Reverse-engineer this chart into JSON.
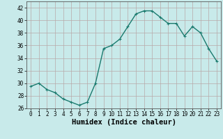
{
  "x": [
    0,
    1,
    2,
    3,
    4,
    5,
    6,
    7,
    8,
    9,
    10,
    11,
    12,
    13,
    14,
    15,
    16,
    17,
    18,
    19,
    20,
    21,
    22,
    23
  ],
  "y": [
    29.5,
    30,
    29,
    28.5,
    27.5,
    27,
    26.5,
    27,
    30,
    35.5,
    36,
    37,
    39,
    41,
    41.5,
    41.5,
    40.5,
    39.5,
    39.5,
    37.5,
    39,
    38,
    35.5,
    33.5
  ],
  "line_color": "#1a7a6e",
  "marker": "+",
  "marker_size": 3,
  "background_color": "#c8eaea",
  "grid_color": "#b8a8a8",
  "xlabel": "Humidex (Indice chaleur)",
  "ylim": [
    26,
    43
  ],
  "xlim": [
    -0.5,
    23.5
  ],
  "yticks": [
    26,
    28,
    30,
    32,
    34,
    36,
    38,
    40,
    42
  ],
  "xticks": [
    0,
    1,
    2,
    3,
    4,
    5,
    6,
    7,
    8,
    9,
    10,
    11,
    12,
    13,
    14,
    15,
    16,
    17,
    18,
    19,
    20,
    21,
    22,
    23
  ],
  "tick_fontsize": 5.5,
  "xlabel_fontsize": 7.5,
  "line_width": 1.0
}
